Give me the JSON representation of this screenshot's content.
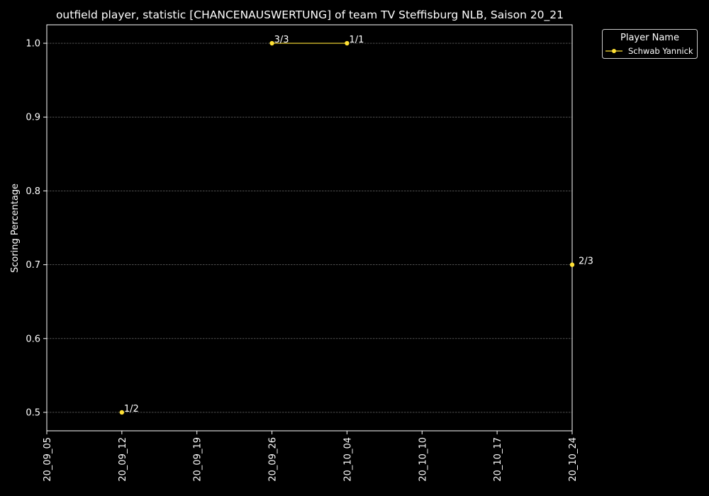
{
  "chart_data": {
    "type": "line",
    "title": "outfield player, statistic [CHANCENAUSWERTUNG] of team TV Steffisburg NLB, Saison 20_21",
    "xlabel": "",
    "ylabel": "Scoring Percentage",
    "x_ticks": [
      "20_09_05",
      "20_09_12",
      "20_09_19",
      "20_09_26",
      "20_10_04",
      "20_10_10",
      "20_10_17",
      "20_10_24"
    ],
    "y_ticks": [
      "0.5",
      "0.6",
      "0.7",
      "0.8",
      "0.9",
      "1.0"
    ],
    "ylim": [
      0.475,
      1.025
    ],
    "grid": true,
    "legend": {
      "title": "Player Name",
      "placement": "outside top-right"
    },
    "series": [
      {
        "name": "Schwab Yannick",
        "color": "#ffe135",
        "points": [
          {
            "x": "20_09_12",
            "y": 0.5,
            "label": "1/2"
          },
          {
            "x": "20_09_26",
            "y": 1.0,
            "label": "3/3"
          },
          {
            "x": "20_10_04",
            "y": 1.0,
            "label": "1/1"
          },
          {
            "x": "20_10_24",
            "y": 0.7,
            "label": "2/3"
          }
        ]
      }
    ]
  },
  "colors": {
    "background": "#000000",
    "foreground": "#ffffff",
    "grid": "#7f7f7f",
    "series": "#ffe135"
  }
}
